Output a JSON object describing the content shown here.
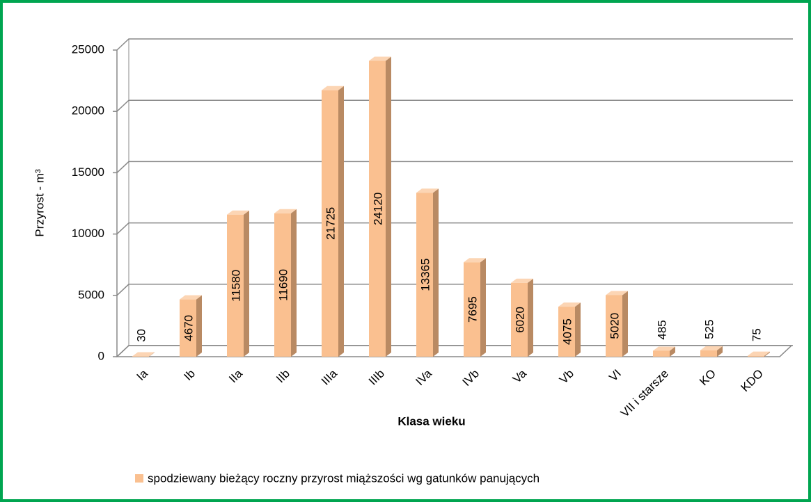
{
  "chart_data": {
    "type": "bar3d",
    "categories": [
      "Ia",
      "Ib",
      "IIa",
      "IIb",
      "IIIa",
      "IIIb",
      "IVa",
      "IVb",
      "Va",
      "Vb",
      "VI",
      "VII i starsze",
      "KO",
      "KDO"
    ],
    "series": [
      {
        "name": "spodziewany bieżący roczny przyrost miąższości wg gatunków panujących",
        "color": "#fac090",
        "values": [
          30,
          4670,
          11580,
          11690,
          21725,
          24120,
          13365,
          7695,
          6020,
          4075,
          5020,
          485,
          525,
          75
        ]
      }
    ],
    "y_label": "Przyrost - m³",
    "x_label": "Klasa wieku",
    "ylim": [
      0,
      25000
    ],
    "yticks": [
      0,
      5000,
      10000,
      15000,
      20000,
      25000
    ],
    "grid": true,
    "legend": "bottom"
  }
}
